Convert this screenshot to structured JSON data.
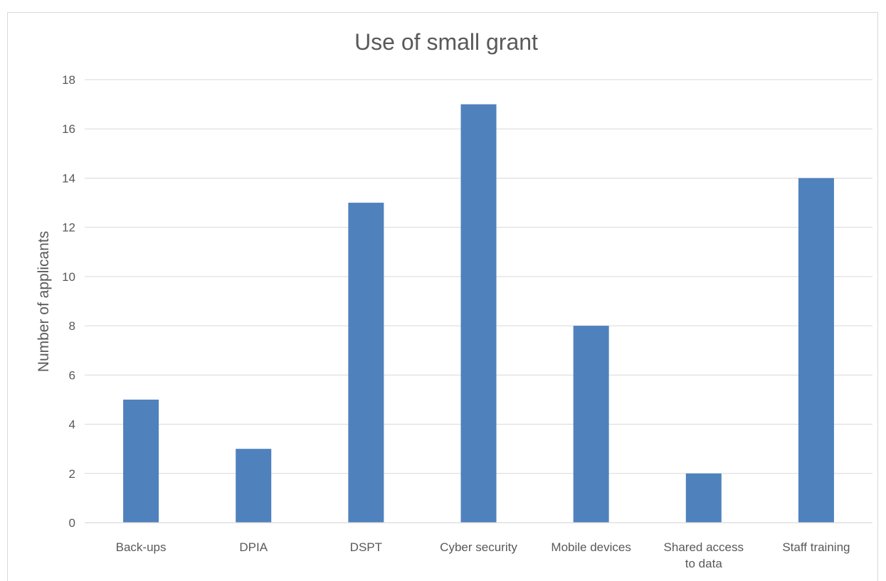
{
  "chart_data": {
    "type": "bar",
    "title": "Use of small grant",
    "xlabel": "",
    "ylabel": "Number of applicants",
    "categories": [
      [
        "Back-ups"
      ],
      [
        "DPIA"
      ],
      [
        "DSPT"
      ],
      [
        "Cyber security"
      ],
      [
        "Mobile devices"
      ],
      [
        "Shared access",
        "to data"
      ],
      [
        "Staff training"
      ]
    ],
    "values": [
      5,
      3,
      13,
      17,
      8,
      2,
      14
    ],
    "ylim": [
      0,
      18
    ],
    "yticks": [
      "0",
      "2",
      "4",
      "6",
      "8",
      "10",
      "12",
      "14",
      "16",
      "18"
    ],
    "grid": true,
    "legend": "none",
    "bar_color": "#4f81bd"
  }
}
